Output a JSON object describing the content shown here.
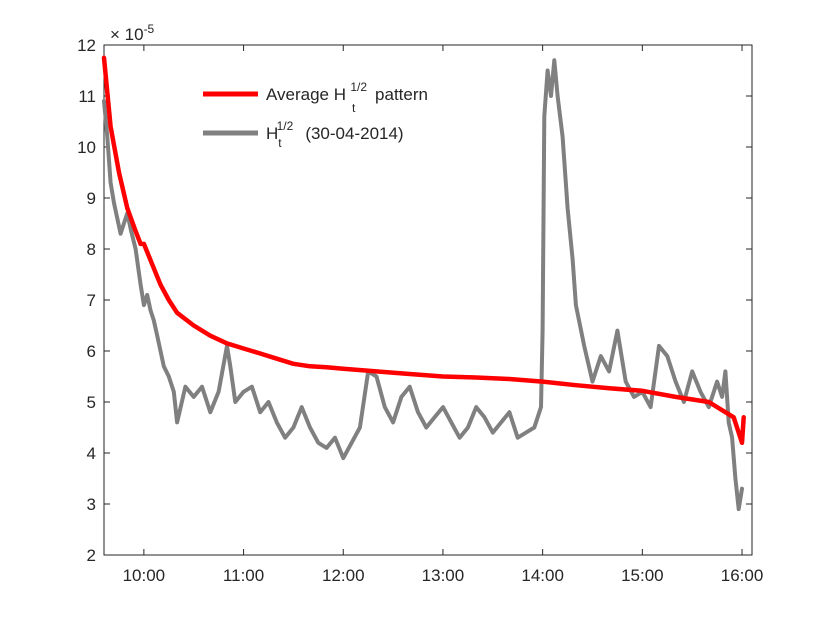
{
  "chart_data": {
    "type": "line",
    "title": "",
    "xlabel": "",
    "ylabel": "",
    "y_multiplier": "× 10",
    "y_multiplier_exp": "-5",
    "xlim": [
      "09:36",
      "16:06"
    ],
    "ylim": [
      2,
      12
    ],
    "x_ticks": [
      "10:00",
      "11:00",
      "12:00",
      "13:00",
      "14:00",
      "15:00",
      "16:00"
    ],
    "y_ticks": [
      2,
      3,
      4,
      5,
      6,
      7,
      8,
      9,
      10,
      11,
      12
    ],
    "grid": false,
    "legend_position": "top-left",
    "colors": {
      "average": "#ff0000",
      "daily": "#808080",
      "axis": "#262626"
    },
    "series": [
      {
        "name": "Average H",
        "name_sub": "t",
        "name_sup": "1/2",
        "name_suffix": "pattern",
        "color": "#ff0000",
        "x": [
          "09:36",
          "09:40",
          "09:45",
          "09:50",
          "09:55",
          "09:58",
          "10:00",
          "10:05",
          "10:10",
          "10:15",
          "10:20",
          "10:30",
          "10:40",
          "10:50",
          "11:00",
          "11:10",
          "11:20",
          "11:30",
          "11:40",
          "11:50",
          "12:00",
          "12:20",
          "12:40",
          "13:00",
          "13:20",
          "13:40",
          "14:00",
          "14:20",
          "14:40",
          "15:00",
          "15:20",
          "15:40",
          "15:55",
          "16:00",
          "16:01"
        ],
        "values": [
          11.75,
          10.4,
          9.5,
          8.8,
          8.35,
          8.1,
          8.1,
          7.7,
          7.3,
          7.0,
          6.75,
          6.5,
          6.3,
          6.15,
          6.05,
          5.95,
          5.85,
          5.75,
          5.7,
          5.68,
          5.65,
          5.6,
          5.55,
          5.5,
          5.48,
          5.45,
          5.4,
          5.33,
          5.27,
          5.22,
          5.1,
          5.0,
          4.7,
          4.2,
          4.7
        ]
      },
      {
        "name": "H",
        "name_sub": "t",
        "name_sup": "1/2",
        "name_suffix": "(30-04-2014)",
        "color": "#808080",
        "x": [
          "09:36",
          "09:38",
          "09:40",
          "09:42",
          "09:44",
          "09:46",
          "09:48",
          "09:50",
          "09:52",
          "09:55",
          "09:58",
          "10:00",
          "10:02",
          "10:04",
          "10:06",
          "10:08",
          "10:10",
          "10:12",
          "10:15",
          "10:18",
          "10:20",
          "10:25",
          "10:30",
          "10:35",
          "10:40",
          "10:45",
          "10:50",
          "10:52",
          "10:55",
          "11:00",
          "11:05",
          "11:10",
          "11:15",
          "11:20",
          "11:25",
          "11:30",
          "11:35",
          "11:40",
          "11:45",
          "11:50",
          "11:55",
          "12:00",
          "12:05",
          "12:10",
          "12:15",
          "12:20",
          "12:25",
          "12:30",
          "12:35",
          "12:40",
          "12:45",
          "12:50",
          "12:55",
          "13:00",
          "13:05",
          "13:10",
          "13:15",
          "13:20",
          "13:25",
          "13:30",
          "13:35",
          "13:40",
          "13:45",
          "13:50",
          "13:55",
          "13:59",
          "14:00",
          "14:01",
          "14:03",
          "14:05",
          "14:07",
          "14:09",
          "14:12",
          "14:15",
          "14:18",
          "14:20",
          "14:25",
          "14:30",
          "14:35",
          "14:40",
          "14:45",
          "14:50",
          "14:55",
          "15:00",
          "15:05",
          "15:10",
          "15:15",
          "15:20",
          "15:25",
          "15:30",
          "15:35",
          "15:40",
          "15:45",
          "15:48",
          "15:50",
          "15:52",
          "15:54",
          "15:56",
          "15:58",
          "16:00"
        ],
        "values": [
          10.9,
          10.2,
          9.3,
          8.9,
          8.6,
          8.3,
          8.5,
          8.7,
          8.4,
          8.0,
          7.3,
          6.9,
          7.1,
          6.8,
          6.6,
          6.3,
          6.0,
          5.7,
          5.5,
          5.2,
          4.6,
          5.3,
          5.1,
          5.3,
          4.8,
          5.2,
          6.1,
          5.7,
          5.0,
          5.2,
          5.3,
          4.8,
          5.0,
          4.6,
          4.3,
          4.5,
          4.9,
          4.5,
          4.2,
          4.1,
          4.3,
          3.9,
          4.2,
          4.5,
          5.6,
          5.5,
          4.9,
          4.6,
          5.1,
          5.3,
          4.8,
          4.5,
          4.7,
          4.9,
          4.6,
          4.3,
          4.5,
          4.9,
          4.7,
          4.4,
          4.6,
          4.8,
          4.3,
          4.4,
          4.5,
          4.9,
          6.4,
          10.6,
          11.5,
          11.0,
          11.7,
          11.0,
          10.2,
          8.8,
          7.8,
          6.9,
          6.1,
          5.4,
          5.9,
          5.6,
          6.4,
          5.4,
          5.1,
          5.2,
          4.9,
          6.1,
          5.9,
          5.4,
          5.0,
          5.6,
          5.2,
          4.9,
          5.4,
          5.1,
          5.6,
          4.6,
          4.3,
          3.5,
          2.9,
          3.3
        ]
      }
    ]
  }
}
